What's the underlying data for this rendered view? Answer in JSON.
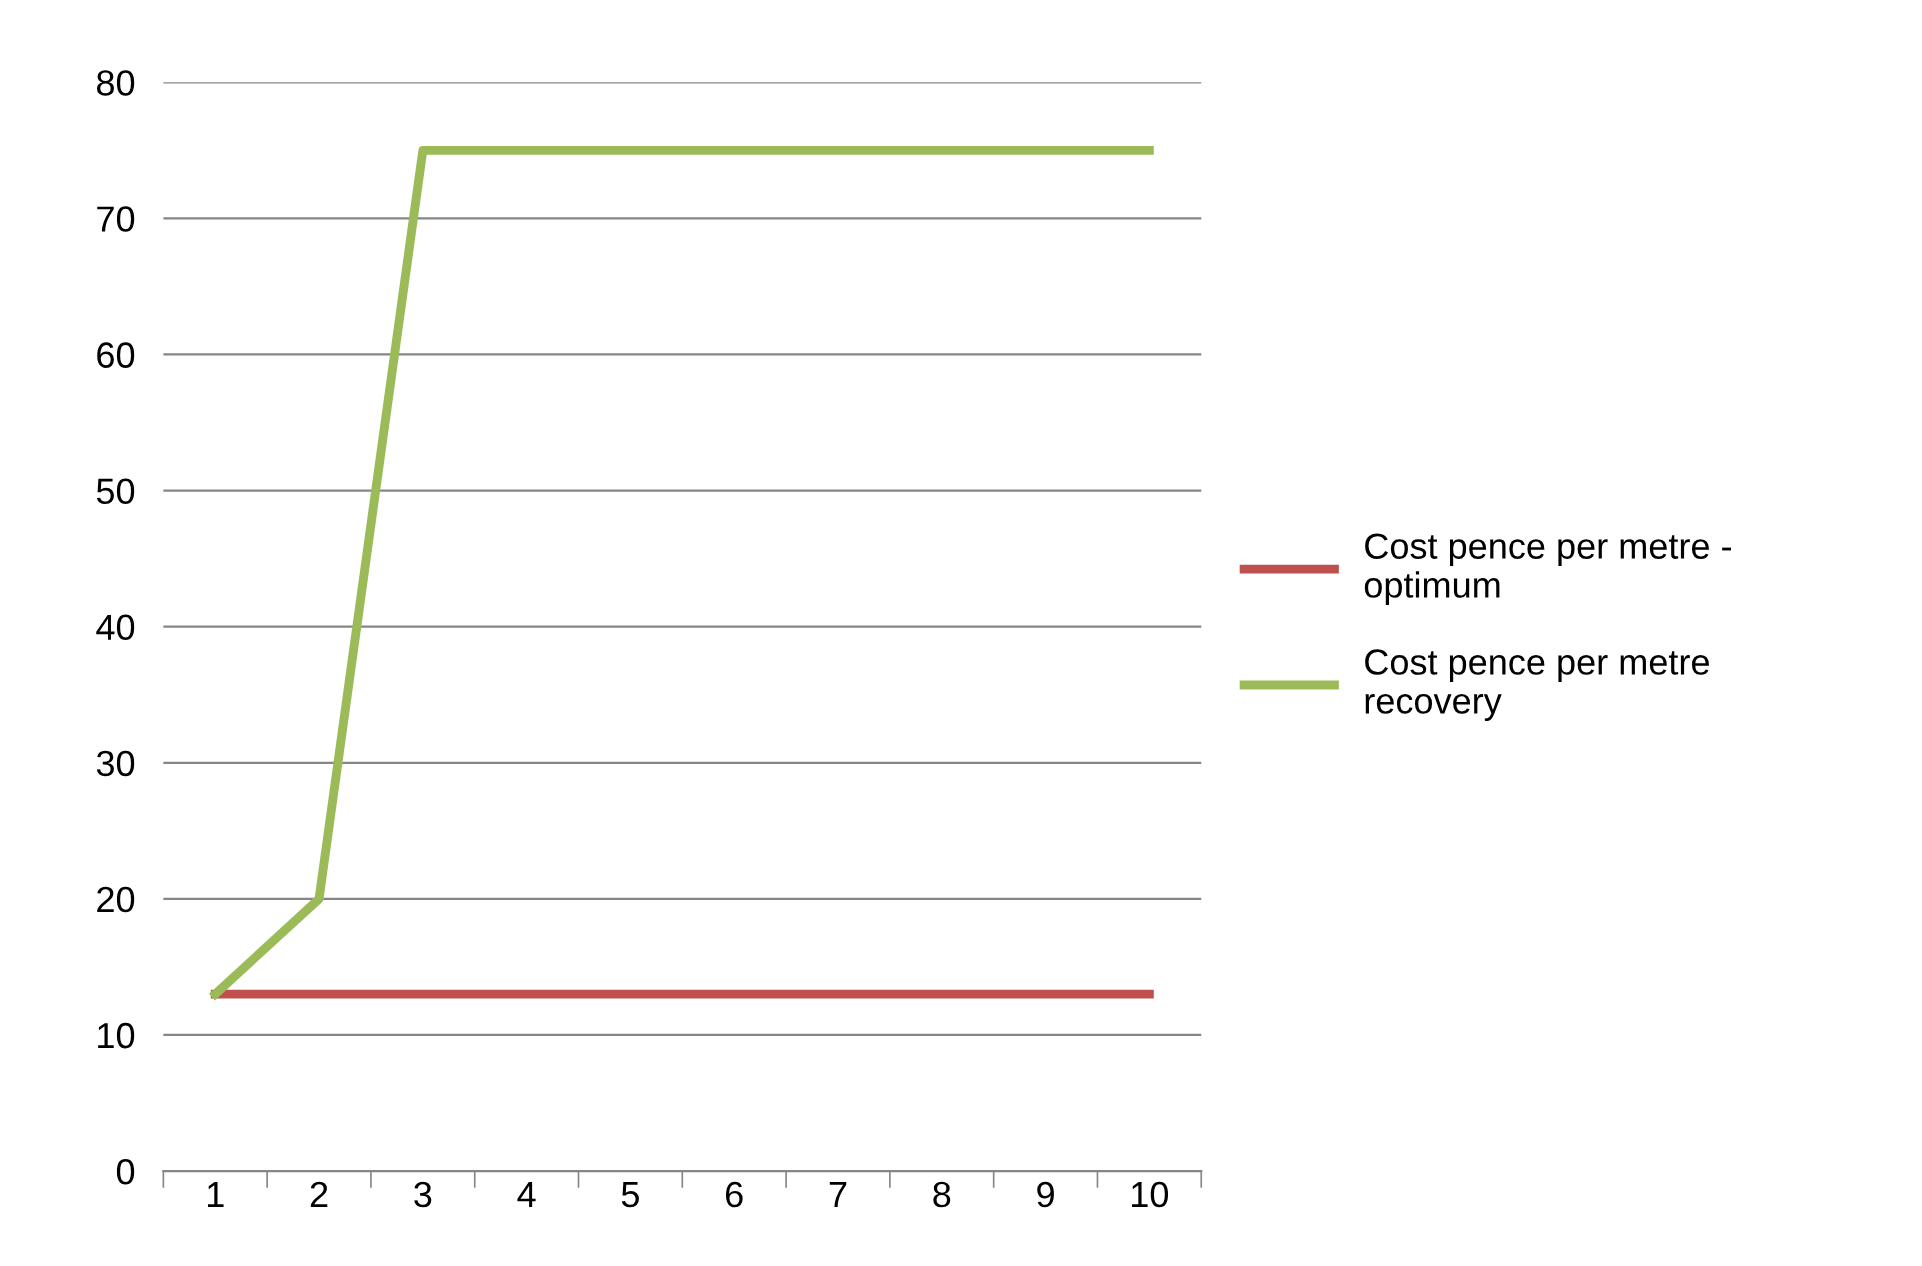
{
  "chart_data": {
    "type": "line",
    "categories": [
      "1",
      "2",
      "3",
      "4",
      "5",
      "6",
      "7",
      "8",
      "9",
      "10"
    ],
    "series": [
      {
        "name": "Cost pence per metre - optimum",
        "color": "#c0504d",
        "values": [
          13,
          13,
          13,
          13,
          13,
          13,
          13,
          13,
          13,
          13
        ]
      },
      {
        "name": "Cost pence per metre recovery",
        "color": "#9bbb59",
        "values": [
          13,
          20,
          75,
          75,
          75,
          75,
          75,
          75,
          75,
          75
        ]
      }
    ],
    "ylim": [
      0,
      80
    ],
    "yticks": [
      0,
      10,
      20,
      30,
      40,
      50,
      60,
      70,
      80
    ],
    "grid": "y",
    "legend": "right",
    "marker": "none",
    "line_style": "solid"
  }
}
